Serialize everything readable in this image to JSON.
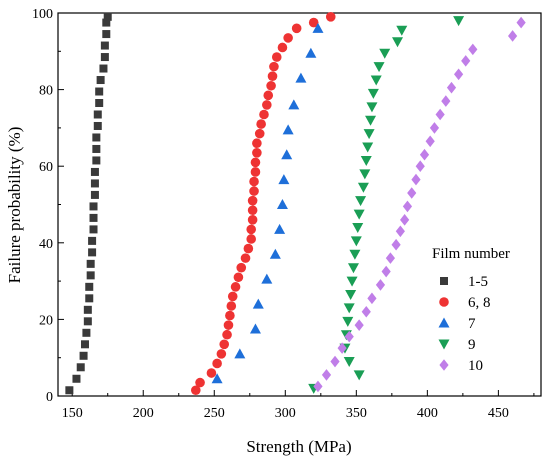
{
  "chart_data": {
    "type": "scatter",
    "xlabel": "Strength (MPa)",
    "ylabel": "Failure probability (%)",
    "xlim": [
      140,
      480
    ],
    "ylim": [
      0,
      100
    ],
    "xticks": [
      "150",
      "200",
      "250",
      "300",
      "350",
      "400",
      "450"
    ],
    "yticks": [
      "0",
      "20",
      "40",
      "60",
      "80",
      "100"
    ],
    "legend": {
      "title": "Film number",
      "position": "bottom-right"
    },
    "series": [
      {
        "name": "1-5",
        "marker": "square",
        "color": "#3a3a3a",
        "points": [
          [
            148,
            1.5
          ],
          [
            153,
            4.5
          ],
          [
            156,
            7.5
          ],
          [
            158,
            10.5
          ],
          [
            159,
            13.5
          ],
          [
            160,
            16.5
          ],
          [
            161,
            19.5
          ],
          [
            161,
            22.5
          ],
          [
            162,
            25.5
          ],
          [
            162,
            28.5
          ],
          [
            163,
            31.5
          ],
          [
            163,
            34.5
          ],
          [
            164,
            37.5
          ],
          [
            164,
            40.5
          ],
          [
            165,
            43.5
          ],
          [
            165,
            46.5
          ],
          [
            165,
            49.5
          ],
          [
            166,
            52.5
          ],
          [
            166,
            55.5
          ],
          [
            166,
            58.5
          ],
          [
            167,
            61.5
          ],
          [
            167,
            64.5
          ],
          [
            167,
            67.5
          ],
          [
            168,
            70.5
          ],
          [
            168,
            73.5
          ],
          [
            169,
            76.5
          ],
          [
            169,
            79.5
          ],
          [
            170,
            82.5
          ],
          [
            172,
            85.5
          ],
          [
            173,
            88.5
          ],
          [
            173,
            91.5
          ],
          [
            174,
            94.5
          ],
          [
            174,
            97.5
          ],
          [
            175,
            99.0
          ]
        ]
      },
      {
        "name": "6, 8",
        "marker": "circle",
        "color": "#ee3333",
        "points": [
          [
            237,
            1.5
          ],
          [
            240,
            3.5
          ],
          [
            248,
            6.0
          ],
          [
            252,
            8.5
          ],
          [
            255,
            11.0
          ],
          [
            257,
            13.5
          ],
          [
            259,
            16.0
          ],
          [
            260,
            18.5
          ],
          [
            261,
            21.0
          ],
          [
            262,
            23.5
          ],
          [
            263,
            26.0
          ],
          [
            265,
            28.5
          ],
          [
            267,
            31.0
          ],
          [
            269,
            33.5
          ],
          [
            272,
            36.0
          ],
          [
            274,
            38.5
          ],
          [
            276,
            41.0
          ],
          [
            276,
            43.5
          ],
          [
            277,
            46.0
          ],
          [
            277,
            48.5
          ],
          [
            277,
            51.0
          ],
          [
            278,
            53.5
          ],
          [
            278,
            56.0
          ],
          [
            279,
            58.5
          ],
          [
            279,
            61.0
          ],
          [
            280,
            63.5
          ],
          [
            280,
            66.0
          ],
          [
            282,
            68.5
          ],
          [
            283,
            71.0
          ],
          [
            285,
            73.5
          ],
          [
            287,
            76.0
          ],
          [
            288,
            78.5
          ],
          [
            290,
            81.0
          ],
          [
            291,
            83.5
          ],
          [
            292,
            86.0
          ],
          [
            294,
            88.5
          ],
          [
            298,
            91.0
          ],
          [
            302,
            93.5
          ],
          [
            308,
            96.0
          ],
          [
            320,
            97.5
          ],
          [
            332,
            99.0
          ]
        ]
      },
      {
        "name": "7",
        "marker": "triangle-up",
        "color": "#1e6fd9",
        "points": [
          [
            252,
            4.5
          ],
          [
            268,
            11
          ],
          [
            279,
            17.5
          ],
          [
            281,
            24
          ],
          [
            287,
            30.5
          ],
          [
            293,
            37
          ],
          [
            296,
            43.5
          ],
          [
            298,
            50
          ],
          [
            299,
            56.5
          ],
          [
            301,
            63
          ],
          [
            302,
            69.5
          ],
          [
            306,
            76
          ],
          [
            311,
            83
          ],
          [
            318,
            89.5
          ],
          [
            323,
            96
          ]
        ]
      },
      {
        "name": "9",
        "marker": "triangle-down",
        "color": "#1a9e55",
        "points": [
          [
            320,
            2
          ],
          [
            352,
            5.5
          ],
          [
            345,
            9
          ],
          [
            342,
            12.5
          ],
          [
            343,
            16
          ],
          [
            344,
            19.5
          ],
          [
            345,
            23
          ],
          [
            346,
            26.5
          ],
          [
            347,
            30
          ],
          [
            348,
            33.5
          ],
          [
            349,
            37
          ],
          [
            350,
            40.5
          ],
          [
            351,
            44
          ],
          [
            352,
            47.5
          ],
          [
            353,
            51
          ],
          [
            355,
            54.5
          ],
          [
            356,
            58
          ],
          [
            357,
            61.5
          ],
          [
            358,
            65
          ],
          [
            359,
            68.5
          ],
          [
            360,
            72
          ],
          [
            361,
            75.5
          ],
          [
            362,
            79
          ],
          [
            364,
            82.5
          ],
          [
            366,
            86
          ],
          [
            370,
            89.5
          ],
          [
            379,
            92.5
          ],
          [
            382,
            95.5
          ],
          [
            422,
            98.0
          ]
        ]
      },
      {
        "name": "10",
        "marker": "diamond",
        "color": "#c07ee8",
        "points": [
          [
            323,
            2.5
          ],
          [
            329,
            5.5
          ],
          [
            335,
            9
          ],
          [
            340,
            12.5
          ],
          [
            345,
            15.5
          ],
          [
            352,
            18.5
          ],
          [
            357,
            22
          ],
          [
            361,
            25.5
          ],
          [
            367,
            29
          ],
          [
            371,
            32.5
          ],
          [
            374,
            36
          ],
          [
            378,
            39.5
          ],
          [
            381,
            43
          ],
          [
            384,
            46
          ],
          [
            386,
            49.5
          ],
          [
            389,
            53
          ],
          [
            392,
            56.5
          ],
          [
            395,
            60
          ],
          [
            398,
            63
          ],
          [
            402,
            66.5
          ],
          [
            405,
            70
          ],
          [
            409,
            73.5
          ],
          [
            413,
            77
          ],
          [
            417,
            80.5
          ],
          [
            422,
            84
          ],
          [
            427,
            87.5
          ],
          [
            432,
            90.5
          ],
          [
            460,
            94
          ],
          [
            466,
            97.5
          ]
        ]
      }
    ]
  }
}
